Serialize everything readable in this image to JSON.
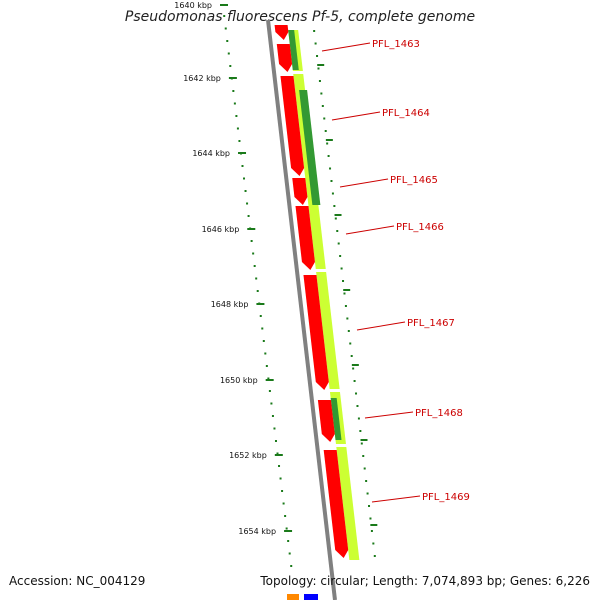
{
  "title": "Pseudomonas fluorescens Pf-5, complete genome",
  "footer": {
    "accession": "Accession: NC_004129",
    "summary": "Topology: circular; Length: 7,074,893 bp; Genes: 6,226"
  },
  "colors": {
    "backbone": "#808080",
    "cds_forward": "#ff0000",
    "gc_light": "#ccff33",
    "gc_dark": "#339933",
    "tick_marks": "#1a7a1a",
    "gene_label": "#cc0000",
    "legend_orange": "#ff8800",
    "legend_blue": "#0000ff"
  },
  "scale": {
    "tick_labels": [
      "1640 kbp",
      "1642 kbp",
      "1644 kbp",
      "1646 kbp",
      "1648 kbp",
      "1650 kbp",
      "1652 kbp",
      "1654 kbp"
    ]
  },
  "genes": [
    {
      "label": "PFL_1463"
    },
    {
      "label": "PFL_1464"
    },
    {
      "label": "PFL_1465"
    },
    {
      "label": "PFL_1466"
    },
    {
      "label": "PFL_1467"
    },
    {
      "label": "PFL_1468"
    },
    {
      "label": "PFL_1469"
    }
  ]
}
